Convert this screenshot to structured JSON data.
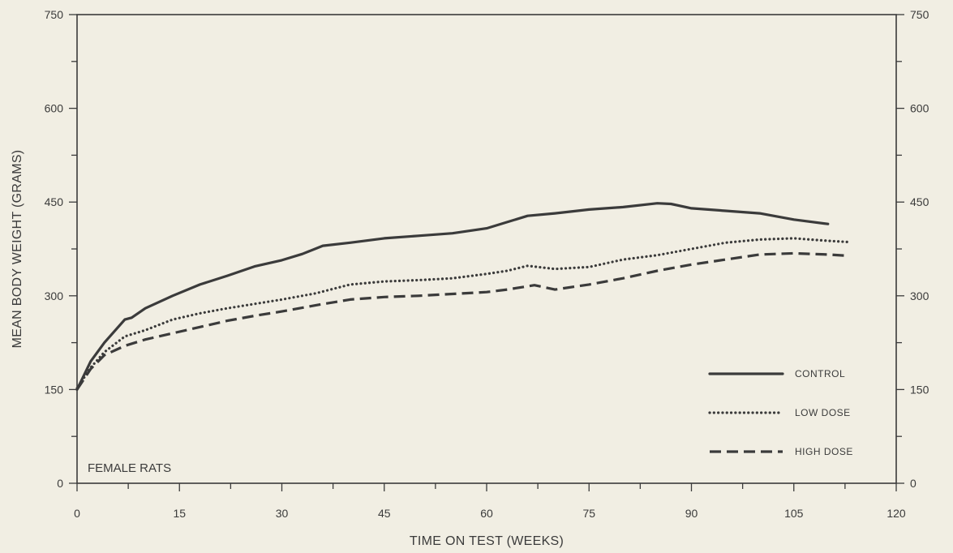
{
  "chart_data": {
    "type": "line",
    "xlabel": "TIME ON TEST (WEEKS)",
    "ylabel": "MEAN BODY WEIGHT (GRAMS)",
    "annotation": "FEMALE RATS",
    "xlim": [
      0,
      120
    ],
    "ylim": [
      0,
      750
    ],
    "x_ticks": [
      0,
      15,
      30,
      45,
      60,
      75,
      90,
      105,
      120
    ],
    "y_ticks": [
      0,
      150,
      300,
      450,
      600,
      750
    ],
    "x_tick_labels": [
      "0",
      "15",
      "30",
      "45",
      "60",
      "75",
      "90",
      "105",
      "120"
    ],
    "y_tick_labels": [
      "0",
      "150",
      "300",
      "450",
      "600",
      "750"
    ],
    "y_tick_labels_right": [
      "0",
      "150",
      "300",
      "450",
      "600",
      "750"
    ],
    "grid": false,
    "legend_position": "lower-right",
    "series": [
      {
        "name": "CONTROL",
        "style": "solid",
        "points": [
          [
            0,
            150
          ],
          [
            2,
            195
          ],
          [
            4,
            225
          ],
          [
            7,
            262
          ],
          [
            8,
            265
          ],
          [
            10,
            280
          ],
          [
            14,
            300
          ],
          [
            18,
            318
          ],
          [
            22,
            332
          ],
          [
            26,
            347
          ],
          [
            30,
            357
          ],
          [
            33,
            367
          ],
          [
            36,
            380
          ],
          [
            40,
            385
          ],
          [
            45,
            392
          ],
          [
            50,
            396
          ],
          [
            55,
            400
          ],
          [
            60,
            408
          ],
          [
            63,
            418
          ],
          [
            66,
            428
          ],
          [
            70,
            432
          ],
          [
            75,
            438
          ],
          [
            80,
            442
          ],
          [
            85,
            448
          ],
          [
            87,
            447
          ],
          [
            90,
            440
          ],
          [
            95,
            436
          ],
          [
            100,
            432
          ],
          [
            105,
            422
          ],
          [
            110,
            415
          ]
        ]
      },
      {
        "name": "LOW DOSE",
        "style": "dotted",
        "points": [
          [
            0,
            152
          ],
          [
            2,
            185
          ],
          [
            4,
            210
          ],
          [
            7,
            235
          ],
          [
            10,
            245
          ],
          [
            14,
            262
          ],
          [
            18,
            272
          ],
          [
            22,
            280
          ],
          [
            26,
            287
          ],
          [
            30,
            294
          ],
          [
            35,
            304
          ],
          [
            40,
            318
          ],
          [
            45,
            323
          ],
          [
            50,
            325
          ],
          [
            55,
            328
          ],
          [
            60,
            335
          ],
          [
            63,
            340
          ],
          [
            66,
            348
          ],
          [
            70,
            343
          ],
          [
            75,
            346
          ],
          [
            80,
            358
          ],
          [
            85,
            365
          ],
          [
            90,
            375
          ],
          [
            95,
            385
          ],
          [
            100,
            390
          ],
          [
            105,
            392
          ],
          [
            110,
            388
          ],
          [
            113,
            386
          ]
        ]
      },
      {
        "name": "HIGH DOSE",
        "style": "dashed",
        "points": [
          [
            0,
            150
          ],
          [
            2,
            183
          ],
          [
            4,
            205
          ],
          [
            7,
            220
          ],
          [
            10,
            230
          ],
          [
            14,
            240
          ],
          [
            18,
            250
          ],
          [
            22,
            260
          ],
          [
            26,
            268
          ],
          [
            30,
            275
          ],
          [
            35,
            285
          ],
          [
            40,
            294
          ],
          [
            45,
            298
          ],
          [
            50,
            300
          ],
          [
            55,
            303
          ],
          [
            60,
            306
          ],
          [
            63,
            310
          ],
          [
            67,
            317
          ],
          [
            70,
            310
          ],
          [
            75,
            318
          ],
          [
            80,
            328
          ],
          [
            85,
            340
          ],
          [
            90,
            350
          ],
          [
            95,
            358
          ],
          [
            100,
            366
          ],
          [
            105,
            368
          ],
          [
            110,
            366
          ],
          [
            113,
            364
          ]
        ]
      }
    ]
  }
}
